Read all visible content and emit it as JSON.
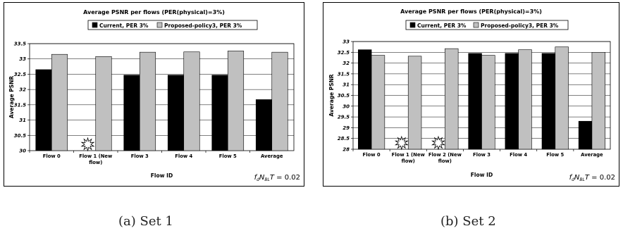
{
  "chart_data": [
    {
      "type": "bar",
      "title": "Average PSNR per flows (PER(physical)=3%)",
      "xlabel": "Flow ID",
      "ylabel": "Average PSNR",
      "ylim": [
        30,
        33.5
      ],
      "yticks": [
        "30",
        "30.5",
        "31",
        "31.5",
        "32",
        "32.5",
        "33",
        "33.5"
      ],
      "categories": [
        "Flow 0",
        "Flow 1 (New flow)",
        "Flow 3",
        "Flow 4",
        "Flow 5",
        "Average"
      ],
      "series": [
        {
          "name": "Current, PER 3%",
          "color": "#000000",
          "values": [
            32.65,
            null,
            32.47,
            32.47,
            32.47,
            31.67
          ]
        },
        {
          "name": "Proposed-policy3, PER 3%",
          "color": "#c0c0c0",
          "values": [
            33.15,
            33.08,
            33.22,
            33.23,
            33.26,
            33.22
          ]
        }
      ],
      "annotation": "f_d N_BL T = 0.02",
      "legend": "top",
      "grid": true
    },
    {
      "type": "bar",
      "title": "Average PSNR per flows (PER(physical)=3%)",
      "xlabel": "Flow ID",
      "ylabel": "Average PSNR",
      "ylim": [
        28,
        33
      ],
      "yticks": [
        "28",
        "28.5",
        "29",
        "29.5",
        "30",
        "30.5",
        "31",
        "31.5",
        "32",
        "32.5",
        "33"
      ],
      "categories": [
        "Flow 0",
        "Flow 1 (New flow)",
        "Flow 2 (New flow)",
        "Flow 3",
        "Flow 4",
        "Flow 5",
        "Average"
      ],
      "series": [
        {
          "name": "Current, PER 3%",
          "color": "#000000",
          "values": [
            32.62,
            null,
            null,
            32.45,
            32.45,
            32.45,
            29.3
          ]
        },
        {
          "name": "Proposed-policy3, PER 3%",
          "color": "#c0c0c0",
          "values": [
            32.36,
            32.32,
            32.67,
            32.36,
            32.62,
            32.75,
            32.5
          ]
        }
      ],
      "annotation": "f_d N_BL T = 0.02",
      "legend": "top",
      "grid": true
    }
  ],
  "captions": [
    "(a) Set 1",
    "(b) Set 2"
  ]
}
